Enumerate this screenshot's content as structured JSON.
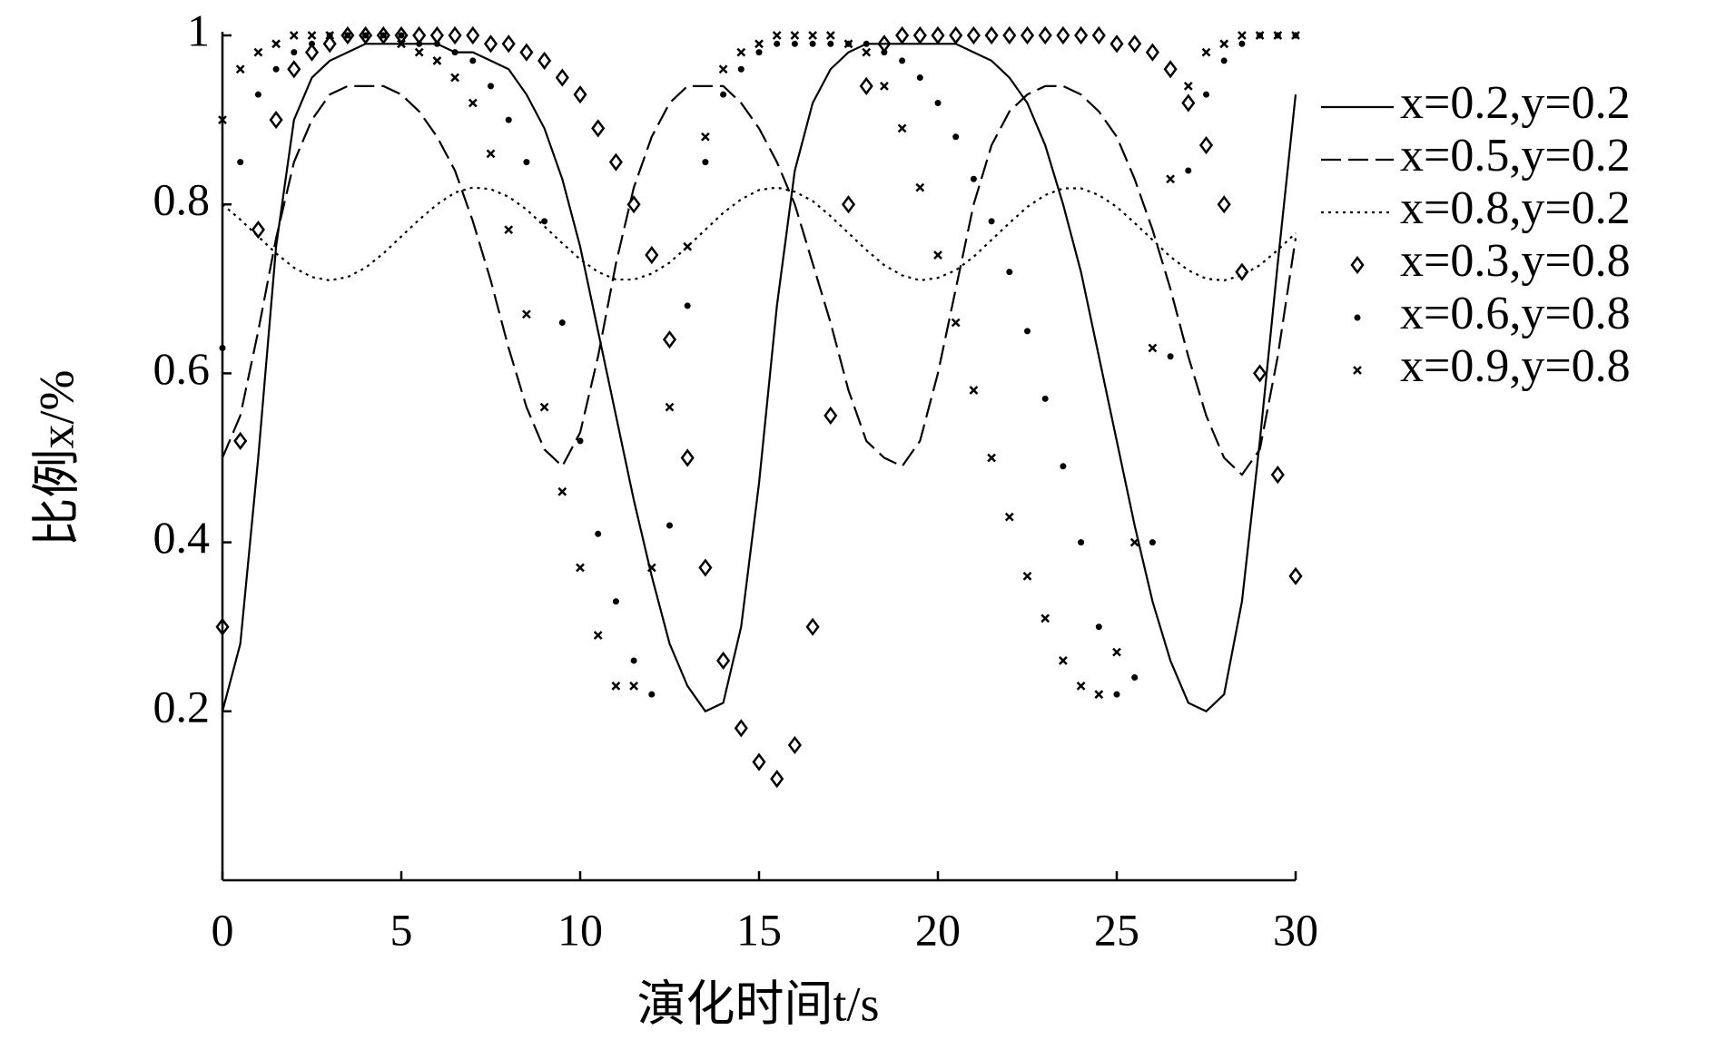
{
  "chart_data": {
    "type": "line",
    "xlabel": "演化时间t/s",
    "ylabel": "比例x/%",
    "xlim": [
      0,
      30
    ],
    "ylim": [
      0,
      1
    ],
    "xticks": [
      0,
      5,
      10,
      15,
      20,
      25,
      30
    ],
    "yticks": [
      0.2,
      0.4,
      0.6,
      0.8,
      1
    ],
    "legend": "right",
    "x": [
      0,
      0.5,
      1,
      1.5,
      2,
      2.5,
      3,
      3.5,
      4,
      4.5,
      5,
      5.5,
      6,
      6.5,
      7,
      7.5,
      8,
      8.5,
      9,
      9.5,
      10,
      10.5,
      11,
      11.5,
      12,
      12.5,
      13,
      13.5,
      14,
      14.5,
      15,
      15.5,
      16,
      16.5,
      17,
      17.5,
      18,
      18.5,
      19,
      19.5,
      20,
      20.5,
      21,
      21.5,
      22,
      22.5,
      23,
      23.5,
      24,
      24.5,
      25,
      25.5,
      26,
      26.5,
      27,
      27.5,
      28,
      28.5,
      29,
      29.5,
      30
    ],
    "series": [
      {
        "name": "x=0.2,y=0.2",
        "style": "solid",
        "color": "#000000",
        "values": [
          0.2,
          0.28,
          0.5,
          0.75,
          0.9,
          0.95,
          0.97,
          0.98,
          0.99,
          0.99,
          0.99,
          0.99,
          0.99,
          0.98,
          0.98,
          0.97,
          0.96,
          0.93,
          0.89,
          0.83,
          0.75,
          0.65,
          0.55,
          0.45,
          0.36,
          0.28,
          0.23,
          0.2,
          0.21,
          0.3,
          0.47,
          0.68,
          0.84,
          0.92,
          0.96,
          0.98,
          0.99,
          0.99,
          0.99,
          0.99,
          0.99,
          0.99,
          0.98,
          0.97,
          0.95,
          0.92,
          0.87,
          0.8,
          0.72,
          0.62,
          0.52,
          0.42,
          0.33,
          0.26,
          0.21,
          0.2,
          0.22,
          0.33,
          0.52,
          0.73,
          0.93
        ]
      },
      {
        "name": "x=0.5,y=0.2",
        "style": "dashed",
        "color": "#000000",
        "values": [
          0.5,
          0.55,
          0.65,
          0.76,
          0.85,
          0.9,
          0.93,
          0.94,
          0.94,
          0.94,
          0.93,
          0.91,
          0.88,
          0.84,
          0.78,
          0.71,
          0.63,
          0.56,
          0.51,
          0.49,
          0.53,
          0.62,
          0.73,
          0.82,
          0.88,
          0.92,
          0.94,
          0.94,
          0.94,
          0.92,
          0.89,
          0.85,
          0.8,
          0.73,
          0.66,
          0.58,
          0.52,
          0.5,
          0.49,
          0.52,
          0.6,
          0.7,
          0.8,
          0.87,
          0.91,
          0.93,
          0.94,
          0.94,
          0.93,
          0.91,
          0.88,
          0.83,
          0.77,
          0.7,
          0.62,
          0.55,
          0.5,
          0.48,
          0.51,
          0.62,
          0.76
        ]
      },
      {
        "name": "x=0.8,y=0.2",
        "style": "dotted",
        "color": "#000000",
        "values": [
          0.8,
          0.782,
          0.762,
          0.742,
          0.725,
          0.714,
          0.71,
          0.714,
          0.725,
          0.742,
          0.762,
          0.782,
          0.8,
          0.814,
          0.82,
          0.818,
          0.809,
          0.794,
          0.774,
          0.754,
          0.735,
          0.72,
          0.711,
          0.711,
          0.718,
          0.731,
          0.75,
          0.77,
          0.79,
          0.806,
          0.817,
          0.82,
          0.815,
          0.804,
          0.786,
          0.766,
          0.746,
          0.728,
          0.716,
          0.71,
          0.713,
          0.722,
          0.738,
          0.758,
          0.778,
          0.797,
          0.811,
          0.819,
          0.819,
          0.811,
          0.797,
          0.778,
          0.758,
          0.738,
          0.722,
          0.712,
          0.71,
          0.716,
          0.728,
          0.746,
          0.766
        ]
      },
      {
        "name": "x=0.3,y=0.8",
        "style": "diamond",
        "color": "#000000",
        "values": [
          0.3,
          0.52,
          0.77,
          0.9,
          0.96,
          0.98,
          0.99,
          1,
          1,
          1,
          1,
          1,
          1,
          1,
          1,
          0.99,
          0.99,
          0.98,
          0.97,
          0.95,
          0.93,
          0.89,
          0.85,
          0.8,
          0.74,
          0.64,
          0.5,
          0.37,
          0.26,
          0.18,
          0.14,
          0.12,
          0.16,
          0.3,
          0.55,
          0.8,
          0.94,
          0.99,
          1,
          1,
          1,
          1,
          1,
          1,
          1,
          1,
          1,
          1,
          1,
          1,
          0.99,
          0.99,
          0.98,
          0.96,
          0.92,
          0.87,
          0.8,
          0.72,
          0.6,
          0.48,
          0.36
        ]
      },
      {
        "name": "x=0.6,y=0.8",
        "style": "dot",
        "color": "#000000",
        "values": [
          0.63,
          0.85,
          0.93,
          0.96,
          0.98,
          0.99,
          1,
          1,
          1,
          1,
          1,
          0.99,
          0.99,
          0.98,
          0.97,
          0.94,
          0.9,
          0.85,
          0.78,
          0.66,
          0.52,
          0.41,
          0.33,
          0.26,
          0.22,
          0.42,
          0.68,
          0.85,
          0.93,
          0.96,
          0.98,
          0.99,
          0.99,
          0.99,
          0.99,
          0.99,
          0.99,
          0.98,
          0.97,
          0.95,
          0.92,
          0.88,
          0.83,
          0.78,
          0.72,
          0.65,
          0.57,
          0.49,
          0.4,
          0.3,
          0.22,
          0.24,
          0.4,
          0.62,
          0.84,
          0.93,
          0.97,
          0.99,
          1,
          1,
          1
        ]
      },
      {
        "name": "x=0.9,y=0.8",
        "style": "cross",
        "color": "#000000",
        "values": [
          0.9,
          0.96,
          0.98,
          0.99,
          1,
          1,
          1,
          1,
          1,
          1,
          0.99,
          0.98,
          0.97,
          0.95,
          0.92,
          0.86,
          0.77,
          0.67,
          0.56,
          0.46,
          0.37,
          0.29,
          0.23,
          0.23,
          0.37,
          0.56,
          0.75,
          0.88,
          0.96,
          0.98,
          0.99,
          1,
          1,
          1,
          1,
          0.99,
          0.98,
          0.94,
          0.89,
          0.82,
          0.74,
          0.66,
          0.58,
          0.5,
          0.43,
          0.36,
          0.31,
          0.26,
          0.23,
          0.22,
          0.27,
          0.4,
          0.63,
          0.83,
          0.94,
          0.98,
          0.99,
          1,
          1,
          1,
          1
        ]
      }
    ]
  }
}
